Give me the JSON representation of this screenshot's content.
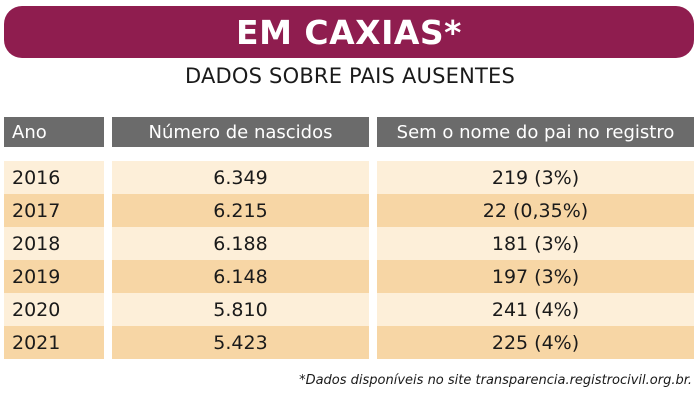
{
  "banner": {
    "title": "EM CAXIAS*",
    "color": "#8f1d4f"
  },
  "subtitle": "DADOS SOBRE PAIS AUSENTES",
  "table": {
    "headers": [
      "Ano",
      "Número de nascidos",
      "Sem o nome do pai no registro"
    ],
    "rows": [
      [
        "2016",
        "6.349",
        "219 (3%)"
      ],
      [
        "2017",
        "6.215",
        "22 (0,35%)"
      ],
      [
        "2018",
        "6.188",
        "181 (3%)"
      ],
      [
        "2019",
        "6.148",
        "197 (3%)"
      ],
      [
        "2020",
        "5.810",
        "241 (4%)"
      ],
      [
        "2021",
        "5.423",
        "225 (4%)"
      ]
    ],
    "header_color": "#6b6b6b",
    "row_colors": [
      "#fdefd9",
      "#f7d6a5"
    ]
  },
  "footnote": "*Dados disponíveis no site transparencia.registrocivil.org.br."
}
